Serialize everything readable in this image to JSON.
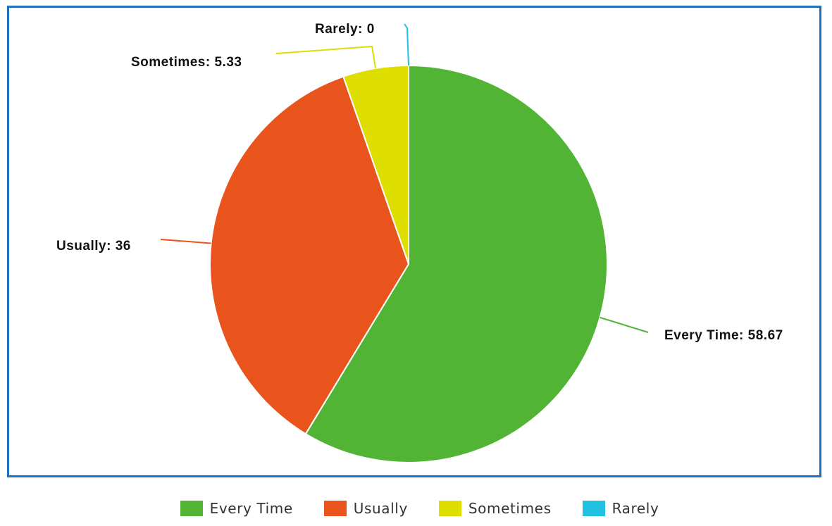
{
  "chart_data": {
    "type": "pie",
    "categories": [
      "Every Time",
      "Usually",
      "Sometimes",
      "Rarely"
    ],
    "values": [
      58.67,
      36,
      5.33,
      0
    ],
    "colors": [
      "#52b434",
      "#e8541c",
      "#dede00",
      "#22c1e0"
    ],
    "slice_labels": [
      "Every Time: 58.67",
      "Usually: 36",
      "Sometimes: 5.33",
      "Rarely: 0"
    ],
    "legend": {
      "position": "bottom",
      "items": [
        "Every Time",
        "Usually",
        "Sometimes",
        "Rarely"
      ]
    }
  }
}
